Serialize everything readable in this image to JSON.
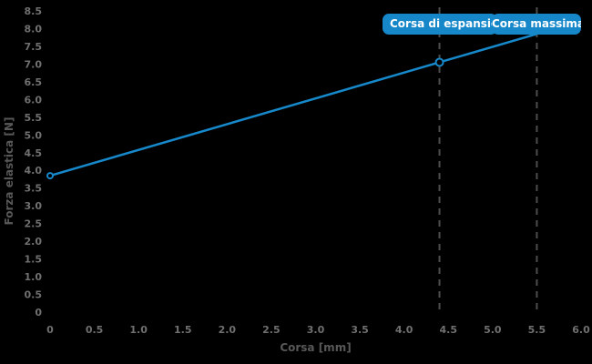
{
  "chart": {
    "background": "#000000",
    "accent_color": "#1789cb",
    "chip_color": "#1687c9",
    "grid_color": "#4d4d4d",
    "tick_color": "#707070",
    "title_color": "#585858"
  },
  "chart_data": {
    "type": "line",
    "title": "",
    "xlabel": "Corsa [mm]",
    "ylabel": "Forza elastica [N]",
    "xlim": [
      0,
      6
    ],
    "ylim": [
      0,
      8.5
    ],
    "grid": false,
    "legend": "none",
    "x_ticks": [
      "0",
      "0.5",
      "1.0",
      "1.5",
      "2.0",
      "2.5",
      "3.0",
      "3.5",
      "4.0",
      "4.5",
      "5.0",
      "5.5",
      "6.0"
    ],
    "y_ticks": [
      "0",
      "0.5",
      "1.0",
      "1.5",
      "2.0",
      "2.5",
      "3.0",
      "3.5",
      "4.0",
      "4.5",
      "5.0",
      "5.5",
      "6.0",
      "6.5",
      "7.0",
      "7.5",
      "8.0",
      "8.5"
    ],
    "series": [
      {
        "name": "Forza elastica",
        "color": "#1789cb",
        "x": [
          0,
          4.4,
          5.5
        ],
        "y": [
          3.85,
          7.05,
          7.85
        ],
        "markers": [
          {
            "x": 0,
            "y": 3.85,
            "r": 3
          },
          {
            "x": 4.4,
            "y": 7.05,
            "r": 4
          }
        ]
      }
    ],
    "reference_lines": [
      {
        "x": 4.4,
        "label": "Corsa di espansione",
        "style": "dashed"
      },
      {
        "x": 5.5,
        "label": "Corsa massima",
        "style": "dashed"
      }
    ]
  }
}
